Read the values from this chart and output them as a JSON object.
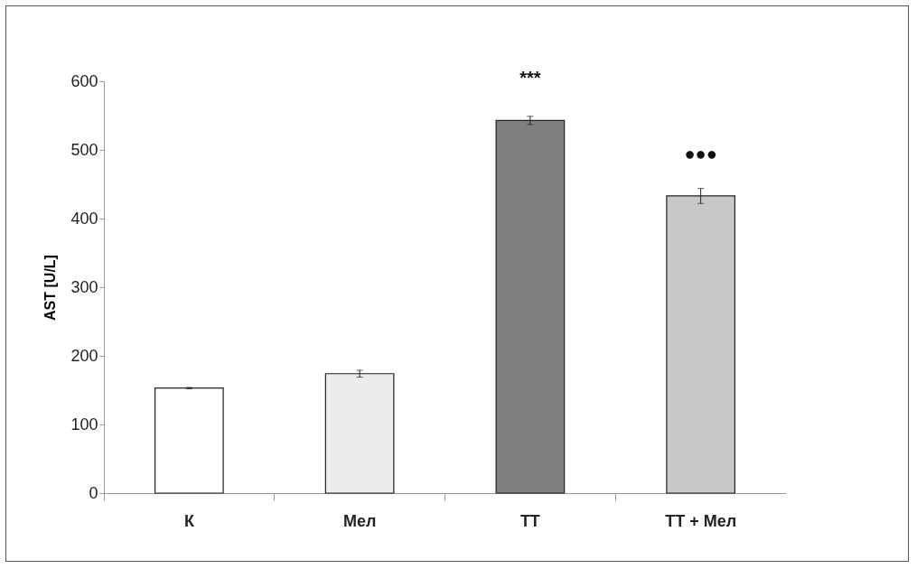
{
  "chart_data": {
    "type": "bar",
    "ylabel": "AST [U/L]",
    "categories": [
      "К",
      "Мел",
      "ТТ",
      "ТТ + Мел"
    ],
    "values": [
      153,
      174,
      543,
      433
    ],
    "errors": [
      1,
      5,
      6,
      11
    ],
    "colors": [
      "#ffffff",
      "#ececec",
      "#7f7f7f",
      "#c8c8c8"
    ],
    "ylim": [
      0,
      600
    ],
    "yticks": [
      0,
      100,
      200,
      300,
      400,
      500,
      600
    ],
    "grid": false,
    "legend": false,
    "annotations": [
      {
        "text": "***",
        "x": "ТТ",
        "y": 543
      },
      {
        "text": "●●●",
        "x": "ТТ + Мел",
        "y": 433
      }
    ]
  }
}
